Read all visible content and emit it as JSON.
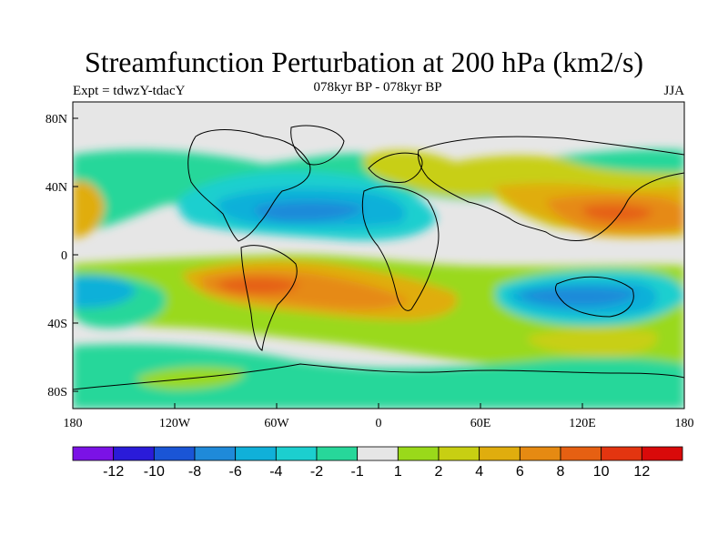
{
  "header": {
    "title": "Streamfunction Perturbation at 200 hPa (km2/s)",
    "left": "Expt = tdwzY-tdacY",
    "center": "078kyr BP - 078kyr BP",
    "right": "JJA"
  },
  "axes": {
    "lat_ticks": [
      "80N",
      "40N",
      "0",
      "40S",
      "80S"
    ],
    "lon_ticks": [
      "180",
      "120W",
      "60W",
      "0",
      "60E",
      "120E",
      "180"
    ]
  },
  "colorbar": {
    "labels": [
      "-12",
      "-10",
      "-8",
      "-6",
      "-4",
      "-2",
      "-1",
      "1",
      "2",
      "4",
      "6",
      "8",
      "10",
      "12"
    ],
    "colors": [
      "#7b12e6",
      "#2a1bd9",
      "#1a55d6",
      "#1f8ad9",
      "#10b0d9",
      "#1ccfcf",
      "#27d79a",
      "#e6e6e6",
      "#9ad91a",
      "#c8cf12",
      "#e0ad0e",
      "#e68a12",
      "#e66012",
      "#e33510",
      "#d90a0a"
    ]
  },
  "colors": {
    "ocean_neutral": "#e6e6e6",
    "coastline": "#000000"
  }
}
